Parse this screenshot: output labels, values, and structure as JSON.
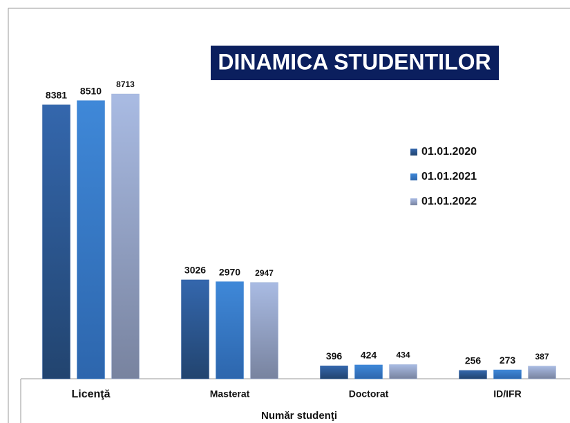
{
  "chart_data": {
    "type": "bar",
    "title": "DINAMICA STUDENTILOR",
    "x_label": "Număr studenţi",
    "categories": [
      "Licenţă",
      "Masterat",
      "Doctorat",
      "ID/IFR"
    ],
    "series": [
      {
        "name": "01.01.2020",
        "color": "#2f5d9e",
        "values": [
          8381,
          3026,
          396,
          256
        ]
      },
      {
        "name": "01.01.2021",
        "color": "#3b82d2",
        "values": [
          8510,
          2970,
          424,
          273
        ]
      },
      {
        "name": "01.01.2022",
        "color": "#9fb2d8",
        "values": [
          8713,
          2947,
          434,
          387
        ]
      }
    ],
    "legend": "right"
  }
}
